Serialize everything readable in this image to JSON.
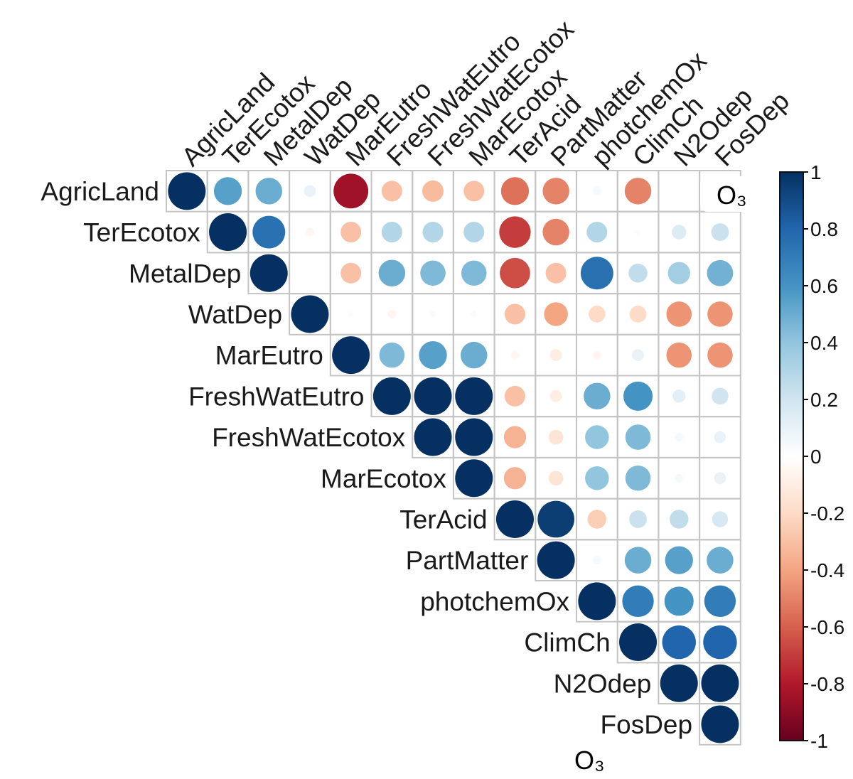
{
  "chart_data": {
    "type": "heatmap",
    "style": "corrplot-circle-upper",
    "variables": [
      "AgricLand",
      "TerEcotox",
      "MetalDep",
      "WatDep",
      "MarEutro",
      "FreshWatEutro",
      "FreshWatEcotox",
      "MarEcotox",
      "TerAcid",
      "PartMatter",
      "photchemOx",
      "ClimCh",
      "N2Odep",
      "FosDep"
    ],
    "upper_matrix": [
      [
        1.0,
        0.55,
        0.5,
        0.1,
        -0.85,
        -0.3,
        -0.32,
        -0.3,
        -0.55,
        -0.5,
        0.05,
        -0.5,
        0.0,
        0.0
      ],
      [
        null,
        1.0,
        0.75,
        -0.05,
        -0.3,
        0.3,
        0.3,
        0.3,
        -0.7,
        -0.5,
        0.3,
        0.02,
        0.15,
        0.22
      ],
      [
        null,
        null,
        1.0,
        0.0,
        -0.3,
        0.5,
        0.45,
        0.45,
        -0.65,
        -0.3,
        0.75,
        0.25,
        0.35,
        0.48
      ],
      [
        null,
        null,
        null,
        1.0,
        0.02,
        -0.05,
        -0.03,
        -0.03,
        -0.3,
        -0.4,
        -0.2,
        -0.2,
        -0.45,
        -0.45
      ],
      [
        null,
        null,
        null,
        null,
        1.0,
        0.45,
        0.55,
        0.5,
        -0.05,
        -0.1,
        -0.05,
        0.1,
        -0.45,
        -0.45
      ],
      [
        null,
        null,
        null,
        null,
        null,
        1.0,
        1.0,
        1.0,
        -0.3,
        -0.1,
        0.5,
        0.6,
        0.12,
        0.2
      ],
      [
        null,
        null,
        null,
        null,
        null,
        null,
        1.0,
        1.0,
        -0.35,
        -0.15,
        0.4,
        0.45,
        0.05,
        0.1
      ],
      [
        null,
        null,
        null,
        null,
        null,
        null,
        null,
        1.0,
        -0.35,
        -0.15,
        0.4,
        0.45,
        0.05,
        0.1
      ],
      [
        null,
        null,
        null,
        null,
        null,
        null,
        null,
        null,
        1.0,
        0.95,
        -0.25,
        0.22,
        0.25,
        0.18
      ],
      [
        null,
        null,
        null,
        null,
        null,
        null,
        null,
        null,
        null,
        1.0,
        0.05,
        0.5,
        0.55,
        0.5
      ],
      [
        null,
        null,
        null,
        null,
        null,
        null,
        null,
        null,
        null,
        null,
        1.0,
        0.7,
        0.6,
        0.7
      ],
      [
        null,
        null,
        null,
        null,
        null,
        null,
        null,
        null,
        null,
        null,
        null,
        1.0,
        0.8,
        0.8
      ],
      [
        null,
        null,
        null,
        null,
        null,
        null,
        null,
        null,
        null,
        null,
        null,
        null,
        1.0,
        1.0
      ],
      [
        null,
        null,
        null,
        null,
        null,
        null,
        null,
        null,
        null,
        null,
        null,
        null,
        null,
        1.0
      ]
    ],
    "colorbar": {
      "range": [
        -1,
        1
      ],
      "ticks": [
        "1",
        "0.8",
        "0.6",
        "0.4",
        "0.2",
        "0",
        "-0.2",
        "-0.4",
        "-0.6",
        "-0.8",
        "-1"
      ],
      "colors": [
        "#67001F",
        "#B2182B",
        "#D6604D",
        "#F4A582",
        "#FDDBC7",
        "#FFFFFF",
        "#D1E5F0",
        "#92C5DE",
        "#4393C3",
        "#2166AC",
        "#053061"
      ]
    },
    "annotations": [
      {
        "text": "O₃",
        "anchor": "top-right-cell"
      },
      {
        "text": "O₃",
        "anchor": "below-last-column"
      }
    ]
  }
}
